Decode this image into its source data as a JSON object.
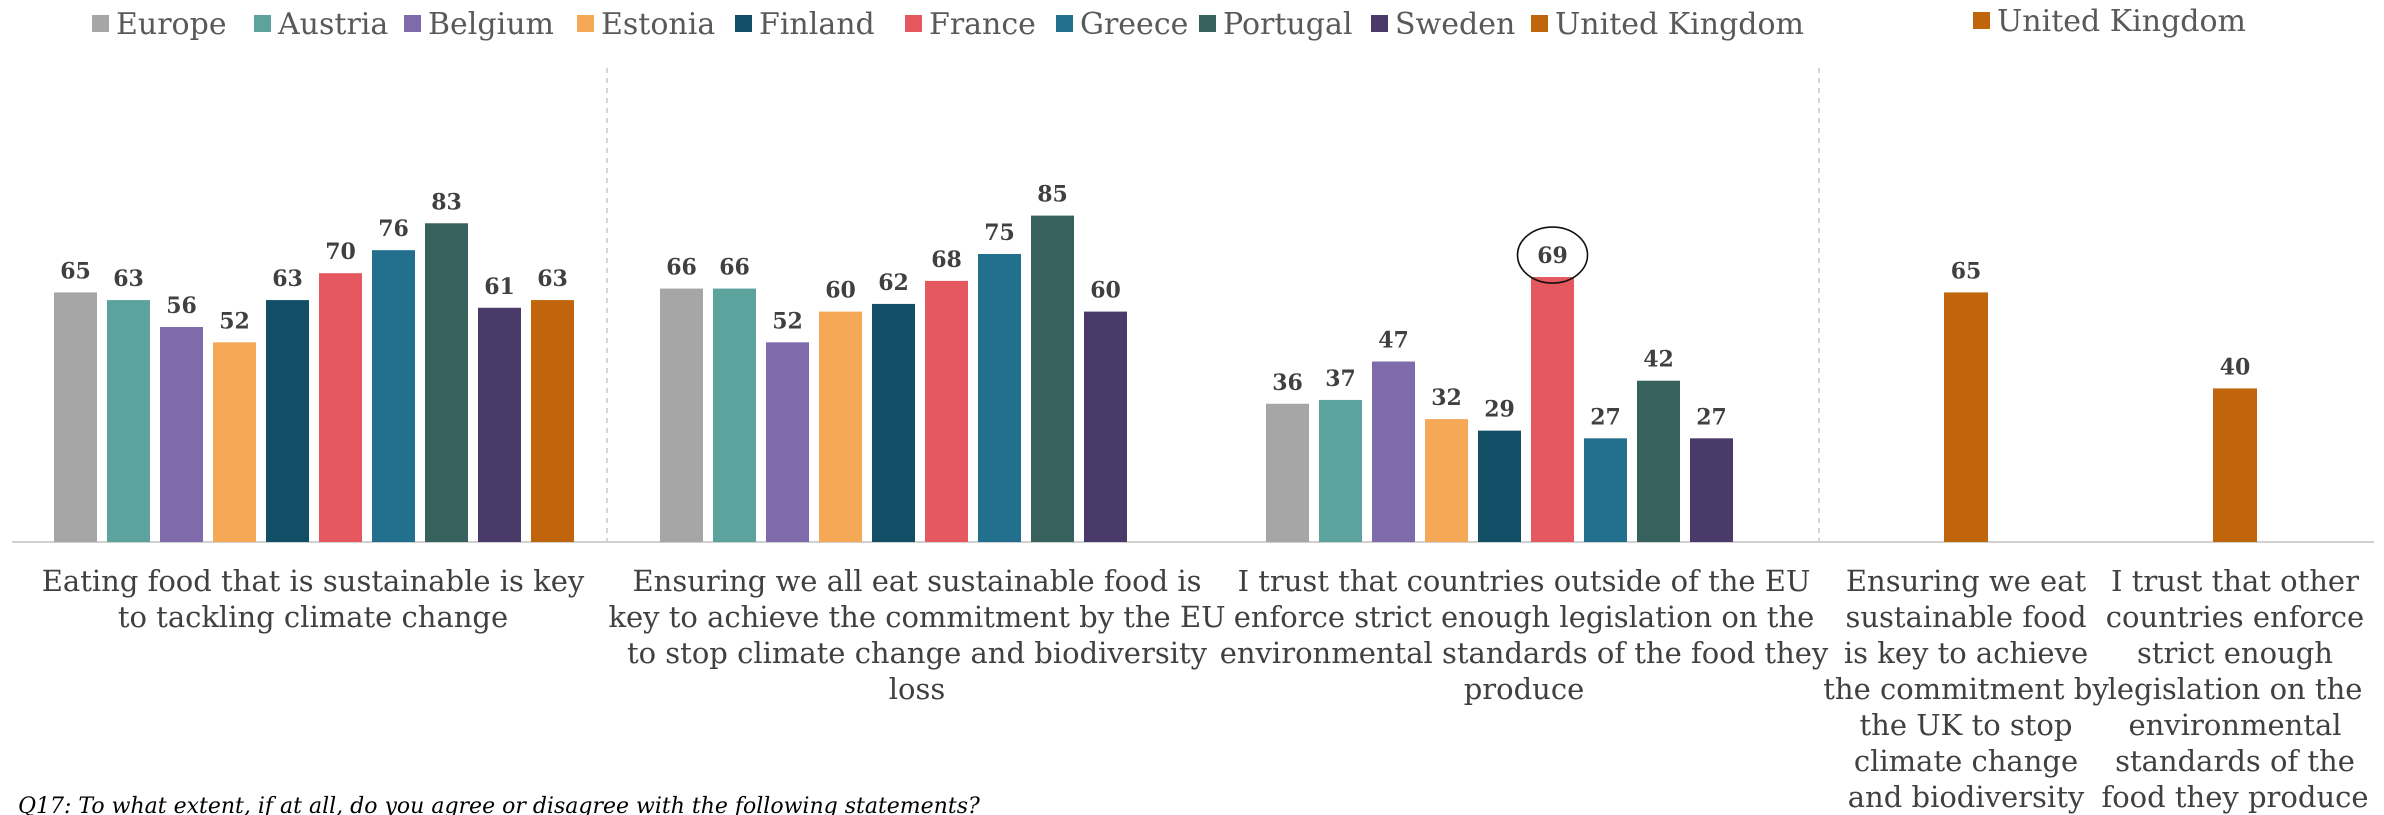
{
  "colors": {
    "Europe": "#a6a6a6",
    "Austria": "#5ba39c",
    "Belgium": "#7f6aab",
    "Estonia": "#f5a856",
    "Finland": "#124f66",
    "France": "#e55860",
    "Greece": "#236f8e",
    "Portugal": "#36615c",
    "Sweden": "#4a3a6a",
    "United Kingdom": "#c0650c"
  },
  "footnote": "Q17: To what extent, if at all, do you agree or disagree with the following statements?",
  "chart_data": [
    {
      "type": "bar",
      "legend": [
        "Europe",
        "Austria",
        "Belgium",
        "Estonia",
        "Finland",
        "France",
        "Greece",
        "Portugal",
        "Sweden",
        "United Kingdom"
      ],
      "legend_position": "top-left",
      "ylim": [
        0,
        100
      ],
      "grid": false,
      "categories": [
        "Eating food that is sustainable is key to tackling climate change",
        "Ensuring we all eat sustainable food is key to achieve the commitment by the EU to stop climate change and biodiversity loss",
        "I trust that countries outside of the EU enforce strict enough legislation on the environmental standards of the food they produce"
      ],
      "series": [
        {
          "name": "Europe",
          "values": [
            65,
            66,
            36
          ]
        },
        {
          "name": "Austria",
          "values": [
            63,
            66,
            37
          ]
        },
        {
          "name": "Belgium",
          "values": [
            56,
            52,
            47
          ]
        },
        {
          "name": "Estonia",
          "values": [
            52,
            60,
            32
          ]
        },
        {
          "name": "Finland",
          "values": [
            63,
            62,
            29
          ]
        },
        {
          "name": "France",
          "values": [
            70,
            68,
            69
          ]
        },
        {
          "name": "Greece",
          "values": [
            76,
            75,
            27
          ]
        },
        {
          "name": "Portugal",
          "values": [
            83,
            85,
            42
          ]
        },
        {
          "name": "Sweden",
          "values": [
            61,
            60,
            27
          ]
        },
        {
          "name": "United Kingdom",
          "values": [
            63,
            null,
            null
          ]
        }
      ],
      "annotations": [
        {
          "type": "circle",
          "category": "I trust that countries outside of the EU enforce strict enough legislation on the environmental standards of the food they produce",
          "series": "France",
          "value": 69
        }
      ]
    },
    {
      "type": "bar",
      "legend": [
        "United Kingdom"
      ],
      "legend_position": "top",
      "ylim": [
        0,
        100
      ],
      "grid": false,
      "categories": [
        "Ensuring we eat sustainable food is key to achieve the commitment by the UK to stop climate change and biodiversity loss",
        "I trust that other countries enforce strict enough legislation on the environmental standards of the food they produce"
      ],
      "series": [
        {
          "name": "United Kingdom",
          "values": [
            65,
            40
          ]
        }
      ]
    }
  ]
}
